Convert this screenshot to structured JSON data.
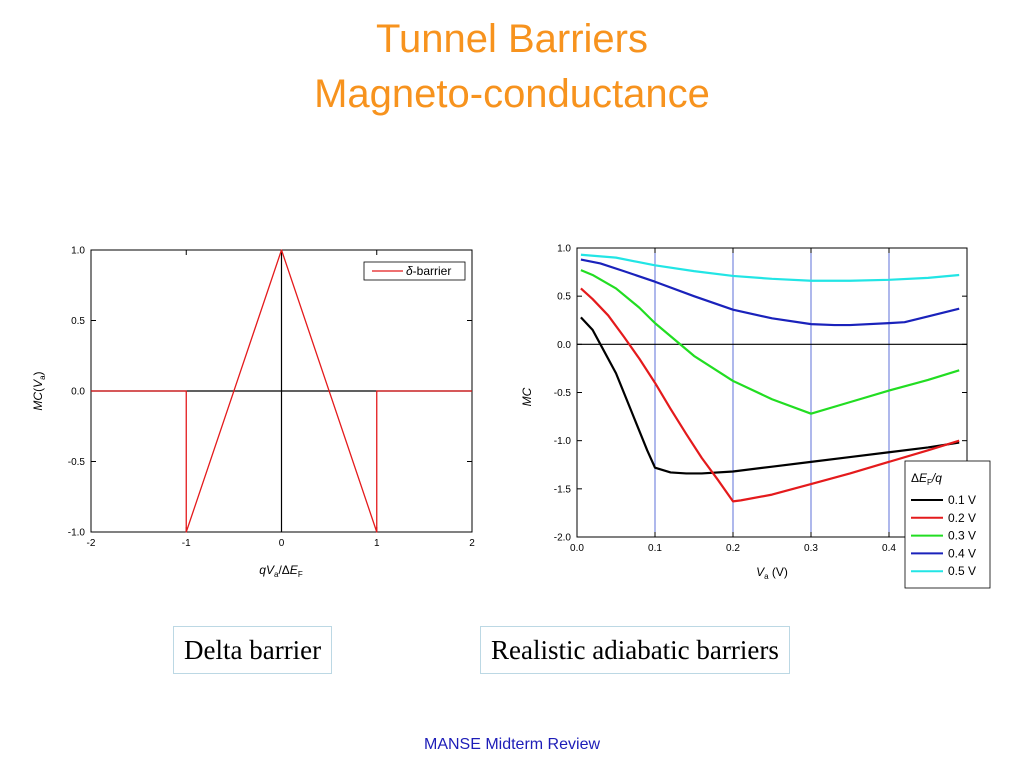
{
  "slide": {
    "title_line1": "Tunnel Barriers",
    "title_line2": "Magneto-conductance",
    "caption_left": "Delta barrier",
    "caption_right": "Realistic adiabatic barriers",
    "footer": "MANSE Midterm Review"
  },
  "colors": {
    "title": "#f7931e",
    "footer": "#1d1db8"
  },
  "chart_data": [
    {
      "type": "line",
      "xlabel_parts": {
        "q": "q",
        "V": "V",
        "sub_a": "a",
        "slash": "/",
        "delta": "Δ",
        "E": "E",
        "sub_F": "F"
      },
      "ylabel_parts": {
        "MC": "MC",
        "open": "(",
        "V": "V",
        "sub_a": "a",
        "close": ")"
      },
      "xlim": [
        -2,
        2
      ],
      "ylim": [
        -1,
        1
      ],
      "x_ticks": [
        "-2",
        "-1",
        "0",
        "1",
        "2"
      ],
      "y_ticks": [
        "1.0",
        "0.5",
        "0.0",
        "-0.5",
        "-1.0"
      ],
      "legend": {
        "position": "top-right",
        "delta": "δ",
        "suffix": "-barrier"
      },
      "series": [
        {
          "name": "δ-barrier",
          "color": "#e41a1c",
          "x": [
            -2,
            -1,
            -1,
            0,
            1,
            1,
            2
          ],
          "y": [
            0,
            0,
            -1,
            1,
            -1,
            0,
            0
          ]
        }
      ],
      "reference_lines": {
        "x": [
          0
        ],
        "y": [
          0
        ]
      }
    },
    {
      "type": "line",
      "xlabel_parts": {
        "V": "V",
        "sub_a": "a",
        "unit": " (V)"
      },
      "ylabel": "MC",
      "xlim": [
        0,
        0.5
      ],
      "ylim": [
        -2,
        1
      ],
      "x_ticks": [
        "0.0",
        "0.1",
        "0.2",
        "0.3",
        "0.4"
      ],
      "y_ticks": [
        "1.0",
        "0.5",
        "0.0",
        "-0.5",
        "-1.0",
        "-1.5",
        "-2.0"
      ],
      "vertical_gridlines": [
        0.1,
        0.2,
        0.3,
        0.4
      ],
      "legend": {
        "position": "bottom-right",
        "title_delta": "Δ",
        "title_E": "E",
        "title_sub_F": "F",
        "title_tail": "/q"
      },
      "series": [
        {
          "name": "0.1 V",
          "color": "#000000",
          "x": [
            0.005,
            0.02,
            0.03,
            0.05,
            0.07,
            0.09,
            0.1,
            0.12,
            0.14,
            0.16,
            0.2,
            0.25,
            0.3,
            0.35,
            0.4,
            0.45,
            0.49
          ],
          "y": [
            0.28,
            0.15,
            0.0,
            -0.3,
            -0.7,
            -1.1,
            -1.28,
            -1.33,
            -1.34,
            -1.34,
            -1.32,
            -1.27,
            -1.22,
            -1.17,
            -1.12,
            -1.07,
            -1.02
          ]
        },
        {
          "name": "0.2 V",
          "color": "#e41a1c",
          "x": [
            0.005,
            0.02,
            0.04,
            0.06,
            0.08,
            0.1,
            0.12,
            0.14,
            0.16,
            0.18,
            0.2,
            0.21,
            0.25,
            0.3,
            0.35,
            0.4,
            0.45,
            0.49
          ],
          "y": [
            0.58,
            0.47,
            0.3,
            0.08,
            -0.15,
            -0.4,
            -0.67,
            -0.93,
            -1.18,
            -1.4,
            -1.63,
            -1.62,
            -1.56,
            -1.45,
            -1.34,
            -1.22,
            -1.1,
            -1.0
          ]
        },
        {
          "name": "0.3 V",
          "color": "#22dd22",
          "x": [
            0.005,
            0.02,
            0.05,
            0.08,
            0.1,
            0.15,
            0.2,
            0.25,
            0.3,
            0.35,
            0.4,
            0.45,
            0.49
          ],
          "y": [
            0.77,
            0.72,
            0.58,
            0.38,
            0.22,
            -0.12,
            -0.38,
            -0.57,
            -0.72,
            -0.6,
            -0.48,
            -0.37,
            -0.27
          ]
        },
        {
          "name": "0.4 V",
          "color": "#1a22bb",
          "x": [
            0.005,
            0.03,
            0.06,
            0.1,
            0.15,
            0.2,
            0.25,
            0.3,
            0.33,
            0.35,
            0.4,
            0.42,
            0.45,
            0.49
          ],
          "y": [
            0.88,
            0.84,
            0.76,
            0.65,
            0.5,
            0.36,
            0.27,
            0.21,
            0.2,
            0.2,
            0.22,
            0.23,
            0.29,
            0.37
          ]
        },
        {
          "name": "0.5 V",
          "color": "#22e5e5",
          "x": [
            0.005,
            0.05,
            0.1,
            0.15,
            0.2,
            0.25,
            0.3,
            0.35,
            0.4,
            0.45,
            0.49
          ],
          "y": [
            0.93,
            0.9,
            0.82,
            0.76,
            0.71,
            0.68,
            0.66,
            0.66,
            0.67,
            0.69,
            0.72
          ]
        }
      ],
      "reference_lines": {
        "y": [
          0
        ]
      }
    }
  ]
}
